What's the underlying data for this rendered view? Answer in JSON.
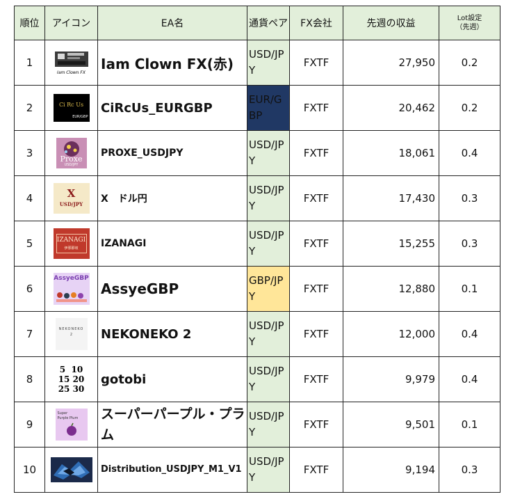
{
  "header": {
    "rank": "順位",
    "icon": "アイコン",
    "ea_name": "EA名",
    "pair": "通貨ペア",
    "broker": "FX会社",
    "profit": "先週の収益",
    "lot_line1": "Lot設定",
    "lot_line2": "（先週）"
  },
  "rows": [
    {
      "rank": "1",
      "icon": "iam-clown-fx-icon",
      "name": "Iam Clown FX(赤)",
      "pair": "USD/JPY",
      "broker": "FXTF",
      "profit": "27,950",
      "lot": "0.2"
    },
    {
      "rank": "2",
      "icon": "circus-eurgbp-icon",
      "name": "CiRcUs_EURGBP",
      "pair": "EUR/GBP",
      "broker": "FXTF",
      "profit": "20,462",
      "lot": "0.2"
    },
    {
      "rank": "3",
      "icon": "proxe-icon",
      "name": "PROXE_USDJPY",
      "pair": "USD/JPY",
      "broker": "FXTF",
      "profit": "18,061",
      "lot": "0.4"
    },
    {
      "rank": "4",
      "icon": "x-usdjpy-icon",
      "name": "X　ドル円",
      "pair": "USD/JPY",
      "broker": "FXTF",
      "profit": "17,430",
      "lot": "0.3"
    },
    {
      "rank": "5",
      "icon": "izanagi-icon",
      "name": "IZANAGI",
      "pair": "USD/JPY",
      "broker": "FXTF",
      "profit": "15,255",
      "lot": "0.3"
    },
    {
      "rank": "6",
      "icon": "assye-gbp-icon",
      "name": "AssyeGBP",
      "pair": "GBP/JPY",
      "broker": "FXTF",
      "profit": "12,880",
      "lot": "0.1"
    },
    {
      "rank": "7",
      "icon": "nekoneko-icon",
      "name": "NEKONEKO 2",
      "pair": "USD/JPY",
      "broker": "FXTF",
      "profit": "12,000",
      "lot": "0.4"
    },
    {
      "rank": "8",
      "icon": "gotobi-icon",
      "name": "gotobi",
      "pair": "USD/JPY",
      "broker": "FXTF",
      "profit": "9,979",
      "lot": "0.4"
    },
    {
      "rank": "9",
      "icon": "super-purple-plum-icon",
      "name": "スーパーパープル・プラム",
      "pair": "USD/JPY",
      "broker": "FXTF",
      "profit": "9,501",
      "lot": "0.1"
    },
    {
      "rank": "10",
      "icon": "distribution-icon",
      "name": "Distribution_USDJPY_M1_V1",
      "pair": "USD/JPY",
      "broker": "FXTF",
      "profit": "9,194",
      "lot": "0.3"
    }
  ],
  "icon_text": {
    "clown": "Iam Clown FX",
    "circus_line1": "Ci Rc Us",
    "circus_line2": "EUR/GBP",
    "proxe_word": "Proxe",
    "proxe_pair": "USD/JPY",
    "x_letter": "X",
    "x_pair": "USD/JPY",
    "izanagi_word": "IZANAGI",
    "izanagi_sub": "伊邪那岐",
    "assye_word": "AssyeGBP",
    "neko_word": "NEKONEKO",
    "neko_num": "2",
    "gotobi_row1": "5  10",
    "gotobi_row2": "15 20",
    "gotobi_row3": "25 30",
    "plum_line1": "Super",
    "plum_line2": "Purple Plum"
  }
}
